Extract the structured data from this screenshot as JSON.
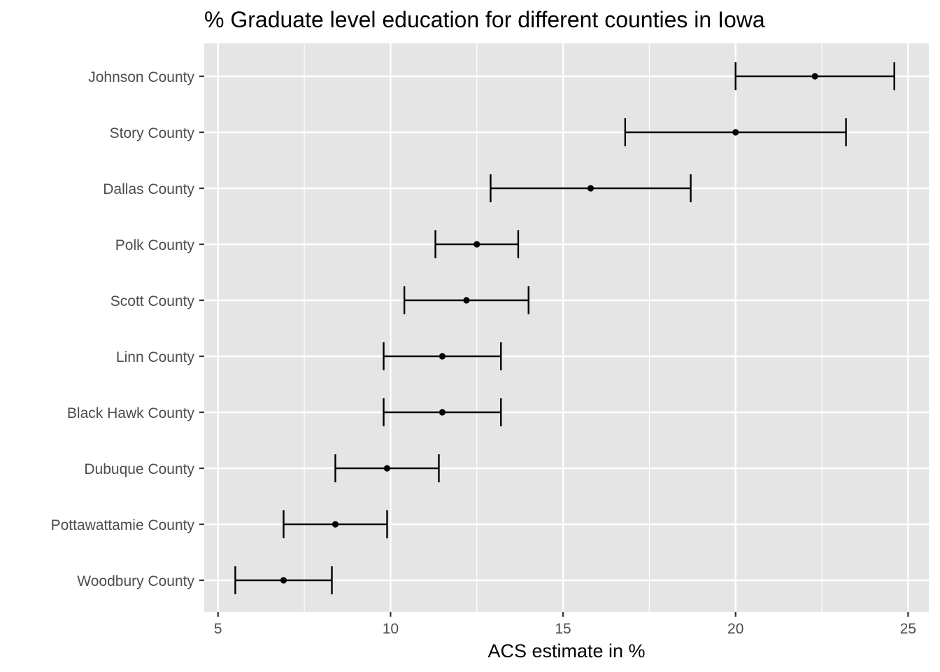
{
  "chart_data": {
    "type": "errorbar",
    "title": "% Graduate level education for different counties in Iowa",
    "xlabel": "ACS estimate in %",
    "ylabel": "",
    "xlim": [
      4.6,
      25.6
    ],
    "x_ticks": [
      5,
      10,
      15,
      20,
      25
    ],
    "x_minor_ticks": [
      7.5,
      12.5,
      17.5,
      22.5
    ],
    "grid": true,
    "legend": "none",
    "colors": {
      "panel_background": "#e5e5e5",
      "grid": "#ffffff",
      "marks": "#000000",
      "tick_text": "#4d4d4d",
      "tick_marks": "#333333"
    },
    "categories": [
      "Johnson County",
      "Story County",
      "Dallas County",
      "Polk County",
      "Scott County",
      "Linn County",
      "Black Hawk County",
      "Dubuque County",
      "Pottawattamie County",
      "Woodbury County"
    ],
    "estimate": [
      22.3,
      20.0,
      15.8,
      12.5,
      12.2,
      11.5,
      11.5,
      9.9,
      8.4,
      6.9
    ],
    "lower": [
      20.0,
      16.8,
      12.9,
      11.3,
      10.4,
      9.8,
      9.8,
      8.4,
      6.9,
      5.5
    ],
    "upper": [
      24.6,
      23.2,
      18.7,
      13.7,
      14.0,
      13.2,
      13.2,
      11.4,
      9.9,
      8.3
    ]
  }
}
